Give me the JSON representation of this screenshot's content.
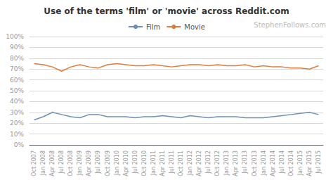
{
  "chart_data": {
    "type": "line",
    "title": "Use of the terms 'film' or 'movie' across Reddit.com",
    "annotations": [
      "StephenFollows.com"
    ],
    "categories": [
      "Oct 2007",
      "Jan 2008",
      "Apr 2008",
      "Jul 2008",
      "Oct 2008",
      "Jan 2009",
      "Apr 2009",
      "Jul 2009",
      "Oct 2009",
      "Jan 2010",
      "Apr 2010",
      "Jul 2010",
      "Oct 2010",
      "Jan 2011",
      "Apr 2011",
      "Jul 2011",
      "Oct 2011",
      "Jan 2012",
      "Apr 2012",
      "Jul 2012",
      "Oct 2012",
      "Jan 2013",
      "Apr 2013",
      "Jul 2013",
      "Oct 2013",
      "Jan 2014",
      "Apr 2014",
      "Jul 2014",
      "Oct 2014",
      "Jan 2015",
      "Apr 2015",
      "Jul 2015"
    ],
    "series": [
      {
        "name": "Film",
        "color": "#6d8fb5",
        "values": [
          23,
          26,
          30,
          28,
          26,
          25,
          28,
          28,
          26,
          26,
          26,
          25,
          26,
          26,
          27,
          26,
          25,
          27,
          26,
          25,
          26,
          26,
          26,
          25,
          25,
          25,
          26,
          27,
          28,
          29,
          30,
          28
        ]
      },
      {
        "name": "Movie",
        "color": "#e07b39",
        "values": [
          75,
          74,
          72,
          68,
          72,
          74,
          72,
          71,
          74,
          75,
          74,
          73,
          73,
          74,
          73,
          72,
          73,
          74,
          74,
          73,
          74,
          73,
          73,
          74,
          72,
          73,
          72,
          72,
          71,
          71,
          70,
          73
        ]
      }
    ],
    "ylim": [
      0,
      100
    ],
    "yticks": [
      {
        "value": 0,
        "label": "0%"
      },
      {
        "value": 10,
        "label": "10%"
      },
      {
        "value": 20,
        "label": "20%"
      },
      {
        "value": 30,
        "label": "30%"
      },
      {
        "value": 40,
        "label": "40%"
      },
      {
        "value": 50,
        "label": "50%"
      },
      {
        "value": 60,
        "label": "60%"
      },
      {
        "value": 70,
        "label": "70%"
      },
      {
        "value": 80,
        "label": "80%"
      },
      {
        "value": 90,
        "label": "90%"
      },
      {
        "value": 100,
        "label": "100%"
      }
    ],
    "grid": true,
    "legend": "top"
  }
}
